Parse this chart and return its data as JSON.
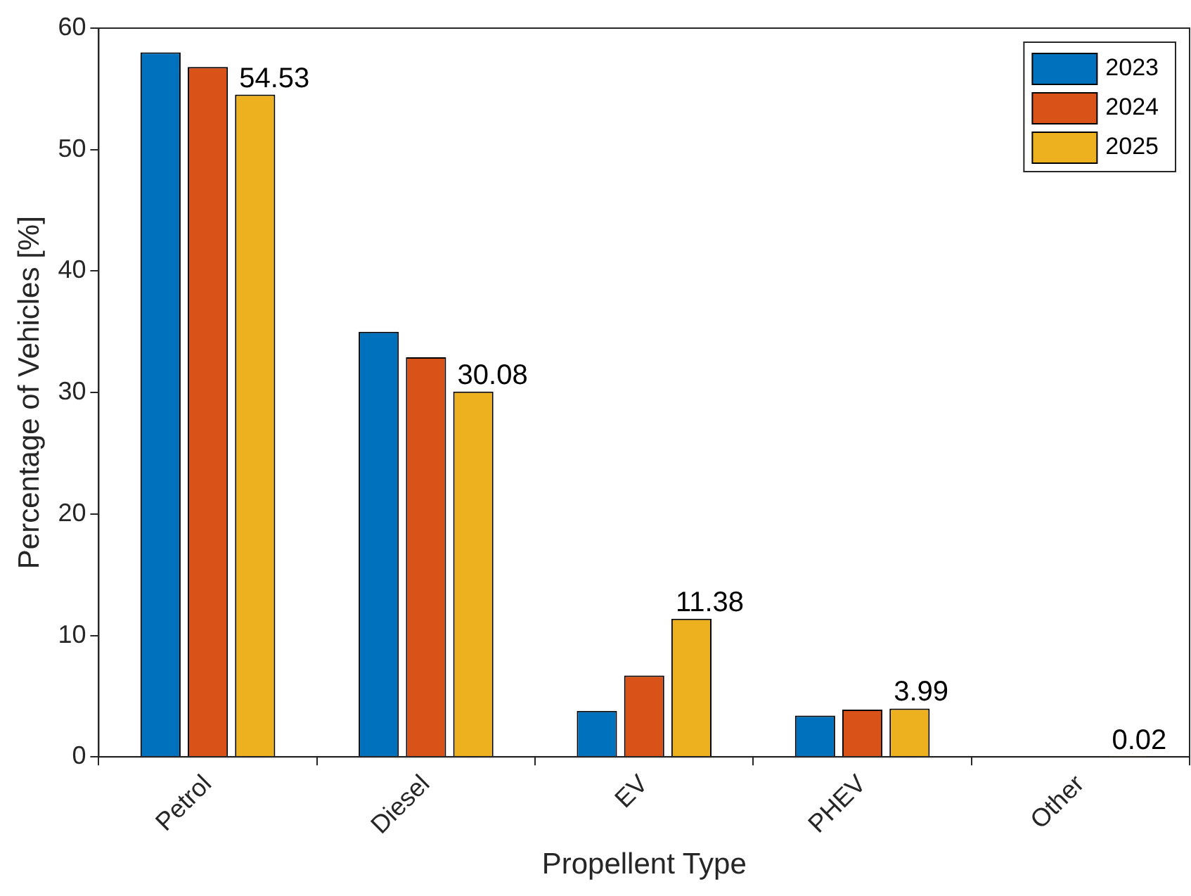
{
  "chart_data": {
    "type": "bar",
    "xlabel": "Propellent Type",
    "ylabel": "Percentage of Vehicles [%]",
    "categories": [
      "Petrol",
      "Diesel",
      "EV",
      "PHEV",
      "Other"
    ],
    "series": [
      {
        "name": "2023",
        "color": "#0072bd",
        "values": [
          58.0,
          35.0,
          3.8,
          3.4,
          0
        ]
      },
      {
        "name": "2024",
        "color": "#d95319",
        "values": [
          56.8,
          32.9,
          6.7,
          3.9,
          0
        ]
      },
      {
        "name": "2025",
        "color": "#edb120",
        "values": [
          54.53,
          30.08,
          11.38,
          3.99,
          0.02
        ],
        "value_labels": [
          "54.53",
          "30.08",
          "11.38",
          "3.99",
          "0.02"
        ]
      }
    ],
    "ylim": [
      0,
      60
    ],
    "yticks": [
      0,
      10,
      20,
      30,
      40,
      50,
      60
    ],
    "grid": false,
    "legend": "top right"
  }
}
